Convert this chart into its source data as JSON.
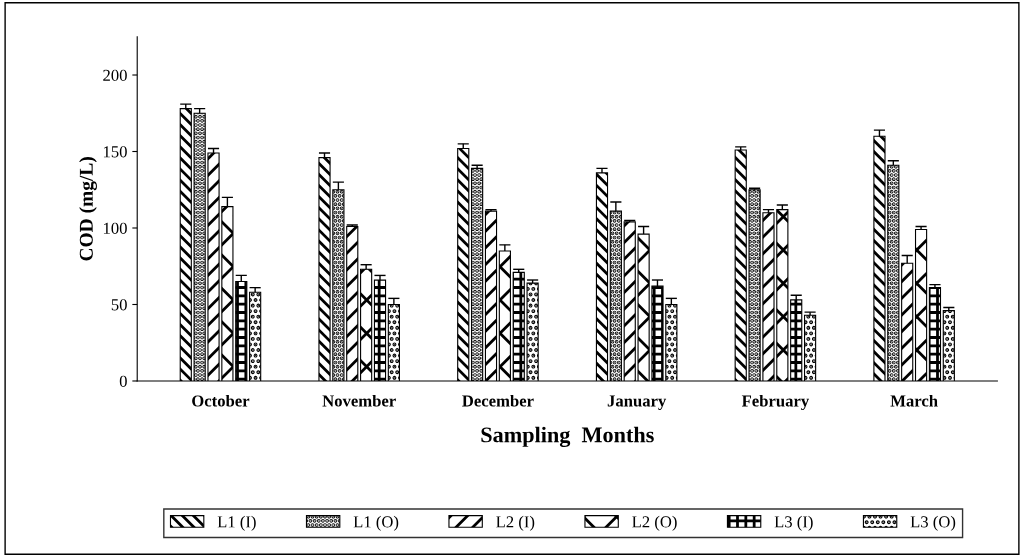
{
  "chart_data": {
    "type": "bar",
    "xlabel": "Sampling  Months",
    "ylabel": "COD (mg/L)",
    "categories": [
      "October",
      "November",
      "December",
      "January",
      "February",
      "March"
    ],
    "series": [
      {
        "name": "L1 (I)",
        "color": "#000000",
        "values": [
          178,
          146,
          152,
          136,
          151,
          160
        ],
        "errors": [
          3,
          3,
          3,
          3,
          2,
          4
        ]
      },
      {
        "name": "L1 (O)",
        "color": "#000000",
        "values": [
          175,
          125,
          139,
          111,
          125,
          141
        ],
        "errors": [
          3,
          5,
          2,
          6,
          1,
          3
        ]
      },
      {
        "name": "L2 (I)",
        "color": "#000000",
        "values": [
          149,
          101,
          111,
          104,
          110,
          77
        ],
        "errors": [
          3,
          1,
          1,
          1,
          2,
          5
        ]
      },
      {
        "name": "L2 (O)",
        "color": "#000000",
        "values": [
          114,
          73,
          85,
          96,
          112,
          99
        ],
        "errors": [
          6,
          3,
          4,
          5,
          3,
          2
        ]
      },
      {
        "name": "L3 (I)",
        "color": "#000000",
        "values": [
          65,
          66,
          71,
          62,
          53,
          61
        ],
        "errors": [
          4,
          3,
          2,
          4,
          3,
          2
        ]
      },
      {
        "name": "L3 (O)",
        "color": "#000000",
        "values": [
          58,
          50,
          64,
          50,
          43,
          46
        ],
        "errors": [
          3,
          4,
          2,
          4,
          2,
          2
        ]
      }
    ],
    "ylim": [
      0,
      225
    ],
    "yticks": [
      0,
      50,
      100,
      150,
      200
    ],
    "grid": false,
    "legend": "bottom"
  }
}
